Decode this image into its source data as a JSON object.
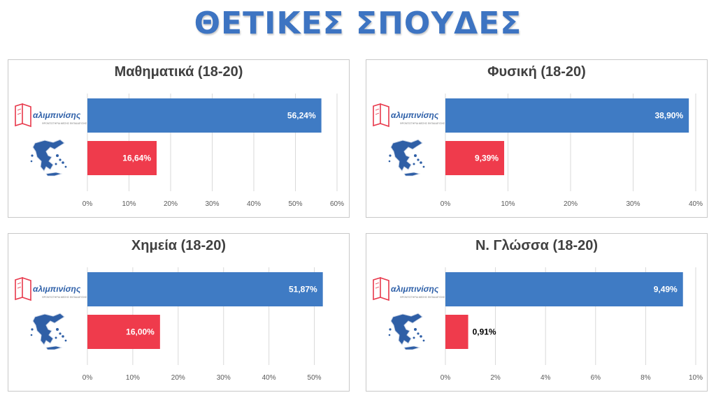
{
  "page": {
    "title": "ΘΕΤΙΚΕΣ ΣΠΟΥΔΕΣ"
  },
  "colors": {
    "school": "#3f7bc4",
    "country": "#ef3b4c",
    "title": "#3d74c2"
  },
  "icons": {
    "school": "alimpinisis-logo",
    "country": "greece-map-icon"
  },
  "logo": {
    "text": "αλιμπινίσης",
    "subtext": "ΦΡΟΝΤΙΣΤΗΡΙΑ ΜΕΣΗΣ ΕΚΠΑΙΔΕΥΣΗΣ"
  },
  "chart_data": [
    {
      "type": "bar",
      "orientation": "horizontal",
      "title": "Μαθηματικά (18-20)",
      "categories": [
        "αλιμπινίσης",
        "Ελλάδα"
      ],
      "values": [
        56.24,
        16.64
      ],
      "value_labels": [
        "56,24%",
        "16,64%"
      ],
      "xlim": [
        0,
        60
      ],
      "ticks": [
        0,
        10,
        20,
        30,
        40,
        50,
        60
      ],
      "tick_labels": [
        "0%",
        "10%",
        "20%",
        "30%",
        "40%",
        "50%",
        "60%"
      ],
      "grid": true,
      "legend": "none"
    },
    {
      "type": "bar",
      "orientation": "horizontal",
      "title": "Φυσική (18-20)",
      "categories": [
        "αλιμπινίσης",
        "Ελλάδα"
      ],
      "values": [
        38.9,
        9.39
      ],
      "value_labels": [
        "38,90%",
        "9,39%"
      ],
      "xlim": [
        0,
        40
      ],
      "ticks": [
        0,
        10,
        20,
        30,
        40
      ],
      "tick_labels": [
        "0%",
        "10%",
        "20%",
        "30%",
        "40%"
      ],
      "grid": true,
      "legend": "none"
    },
    {
      "type": "bar",
      "orientation": "horizontal",
      "title": "Χημεία (18-20)",
      "categories": [
        "αλιμπινίσης",
        "Ελλάδα"
      ],
      "values": [
        51.87,
        16.0
      ],
      "value_labels": [
        "51,87%",
        "16,00%"
      ],
      "xlim": [
        0,
        55
      ],
      "ticks": [
        0,
        10,
        20,
        30,
        40,
        50
      ],
      "tick_labels": [
        "0%",
        "10%",
        "20%",
        "30%",
        "40%",
        "50%"
      ],
      "grid": true,
      "legend": "none"
    },
    {
      "type": "bar",
      "orientation": "horizontal",
      "title": "Ν. Γλώσσα (18-20)",
      "categories": [
        "αλιμπινίσης",
        "Ελλάδα"
      ],
      "values": [
        9.49,
        0.91
      ],
      "value_labels": [
        "9,49%",
        "0,91%"
      ],
      "xlim": [
        0,
        10
      ],
      "ticks": [
        0,
        2,
        4,
        6,
        8,
        10
      ],
      "tick_labels": [
        "0%",
        "2%",
        "4%",
        "6%",
        "8%",
        "10%"
      ],
      "grid": true,
      "legend": "none"
    }
  ]
}
